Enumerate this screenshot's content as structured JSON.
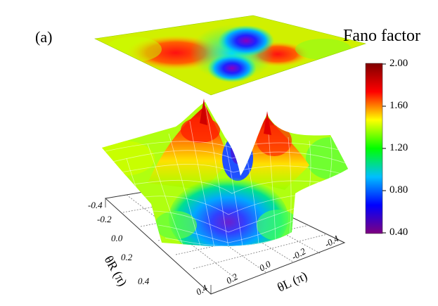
{
  "panel_label": "(a)",
  "chart_data": {
    "type": "heatmap",
    "title": "Fano factor",
    "xlabel": "θL (π)",
    "ylabel": "θR (π)",
    "x_ticks": [
      "-0.4",
      "-0.2",
      "0.0",
      "0.2",
      "0.4"
    ],
    "y_ticks": [
      "-0.4",
      "-0.2",
      "0.0",
      "0.2",
      "0.4"
    ],
    "xlim": [
      -0.5,
      0.5
    ],
    "ylim": [
      -0.5,
      0.5
    ],
    "colorbar": {
      "range": [
        0.4,
        2.0
      ],
      "ticks": [
        "2.00",
        "1.60",
        "1.20",
        "0.80",
        "0.40"
      ],
      "colormap": [
        "#7f007f",
        "#0000ff",
        "#00bfff",
        "#00ff00",
        "#ffff00",
        "#ff0000",
        "#7f0000"
      ]
    },
    "grid": true,
    "surface_features": {
      "peaks": [
        {
          "x": -0.15,
          "y": -0.12,
          "value": 2.0
        },
        {
          "x": 0.15,
          "y": 0.12,
          "value": 1.9
        }
      ],
      "minima": [
        {
          "x": 0.05,
          "y": 0.15,
          "value": 0.4
        },
        {
          "x": -0.05,
          "y": -0.15,
          "value": 0.6
        }
      ],
      "background_value": 1.15
    }
  }
}
